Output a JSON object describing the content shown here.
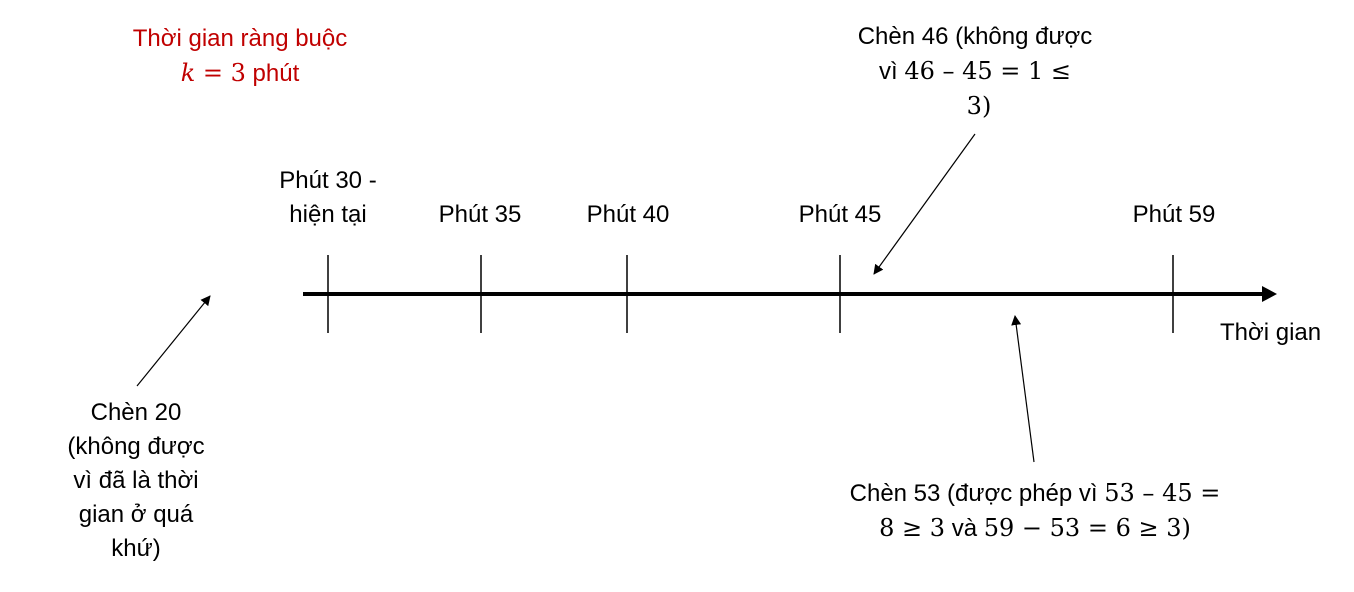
{
  "constraint": {
    "title": "Thời gian ràng buộc",
    "formula_var": "k",
    "formula_rest": " = 3",
    "unit": " phút"
  },
  "ticks": [
    {
      "line1": "Phút 30 -",
      "line2": "hiện tại"
    },
    {
      "label": "Phút 35"
    },
    {
      "label": "Phút 40"
    },
    {
      "label": "Phút 45"
    },
    {
      "label": "Phút 59"
    }
  ],
  "axis_label": "Thời gian",
  "note_past": {
    "lines": [
      "Chèn 20",
      "(không được",
      "vì đã là thời",
      "gian ở quá",
      "khứ)"
    ]
  },
  "note_46": {
    "line1": "Chèn 46 (không được",
    "line2_text": "vì ",
    "line2_math": "46 – 45  =  1  ≤",
    "line3": "3)"
  },
  "note_53": {
    "line1_text": "Chèn 53 (được phép vì ",
    "line1_math": "53 –  45  =",
    "line2_math_a": "8  ≥ 3",
    "line2_text": " và ",
    "line2_math_b": "59  − 53 = 6  ≥ 3",
    "line2_end": ")"
  },
  "colors": {
    "accent": "#c00000",
    "line": "#000000"
  }
}
